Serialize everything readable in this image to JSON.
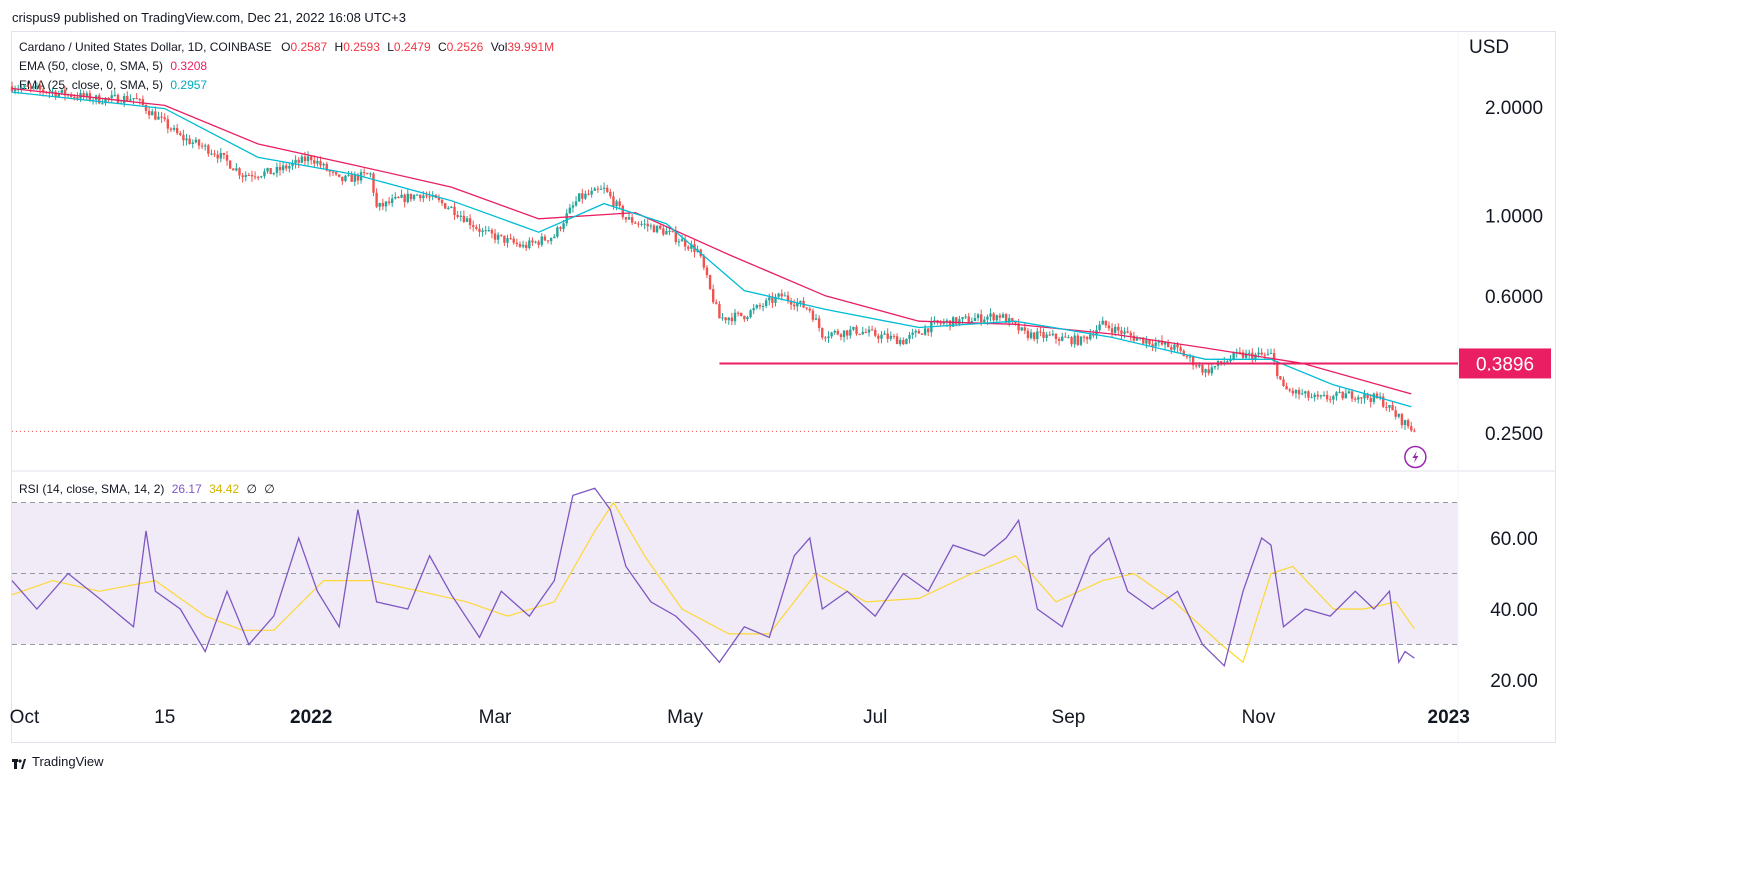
{
  "publish_line": "crispus9 published on TradingView.com, Dec 21, 2022 16:08 UTC+3",
  "legend": {
    "symbol": "Cardano / United States Dollar, 1D, COINBASE",
    "o_label": "O",
    "o": "0.2587",
    "h_label": "H",
    "h": "0.2593",
    "l_label": "L",
    "l": "0.2479",
    "c_label": "C",
    "c": "0.2526",
    "vol_label": "Vol",
    "vol": "39.991M",
    "ema50_label": "EMA (50, close, 0, SMA, 5)",
    "ema50_value": "0.3208",
    "ema25_label": "EMA (25, close, 0, SMA, 5)",
    "ema25_value": "0.2957",
    "rsi_label": "RSI (14, close, SMA, 14, 2)",
    "rsi_value": "26.17",
    "rsi_ma_value": "34.42",
    "na_glyphs": [
      "∅",
      "∅"
    ]
  },
  "currency": "USD",
  "footer_brand": "TradingView",
  "colors": {
    "up": "#26a69a",
    "down": "#ef5350",
    "ema50": "#e91e63",
    "ema25": "#00bcd4",
    "support_line": "#e91e63",
    "rsi": "#7e57c2",
    "rsi_ma": "#fdd835",
    "rsi_band": "#ede7f6"
  },
  "chart_data": [
    {
      "type": "candlestick",
      "title": "Cardano / United States Dollar, 1D, COINBASE",
      "y_scale": "log",
      "y_ticks": [
        2.0,
        1.0,
        0.6,
        0.25
      ],
      "y_tick_labels": [
        "2.0000",
        "1.0000",
        "0.6000",
        "0.2500"
      ],
      "x_ticks": [
        "Oct",
        "15",
        "2022",
        "Mar",
        "May",
        "Jul",
        "Sep",
        "Nov",
        "2023"
      ],
      "x_tick_dates": [
        "2021-10-01",
        "2021-11-15",
        "2022-01-01",
        "2022-03-01",
        "2022-05-01",
        "2022-07-01",
        "2022-09-01",
        "2022-11-01",
        "2023-01-01"
      ],
      "x_range": [
        "2021-09-27",
        "2023-01-04"
      ],
      "support_level": 0.3896,
      "support_label": "0.3896",
      "support_start": "2022-05-12",
      "last_price": 0.2526,
      "ema50_last": 0.3208,
      "ema25_last": 0.2957,
      "price_path": [
        [
          "2021-09-27",
          2.28
        ],
        [
          "2021-10-10",
          2.2
        ],
        [
          "2021-10-25",
          2.1
        ],
        [
          "2021-11-05",
          2.12
        ],
        [
          "2021-11-10",
          1.95
        ],
        [
          "2021-11-20",
          1.65
        ],
        [
          "2021-12-01",
          1.5
        ],
        [
          "2021-12-10",
          1.3
        ],
        [
          "2021-12-20",
          1.32
        ],
        [
          "2022-01-01",
          1.45
        ],
        [
          "2022-01-10",
          1.25
        ],
        [
          "2022-01-20",
          1.3
        ],
        [
          "2022-01-22",
          1.05
        ],
        [
          "2022-01-28",
          1.1
        ],
        [
          "2022-02-05",
          1.15
        ],
        [
          "2022-02-15",
          1.05
        ],
        [
          "2022-02-25",
          0.9
        ],
        [
          "2022-03-10",
          0.82
        ],
        [
          "2022-03-20",
          0.88
        ],
        [
          "2022-03-28",
          1.12
        ],
        [
          "2022-04-05",
          1.18
        ],
        [
          "2022-04-12",
          0.98
        ],
        [
          "2022-04-25",
          0.9
        ],
        [
          "2022-05-05",
          0.8
        ],
        [
          "2022-05-09",
          0.62
        ],
        [
          "2022-05-12",
          0.52
        ],
        [
          "2022-05-20",
          0.53
        ],
        [
          "2022-06-01",
          0.6
        ],
        [
          "2022-06-10",
          0.55
        ],
        [
          "2022-06-14",
          0.47
        ],
        [
          "2022-06-25",
          0.48
        ],
        [
          "2022-07-10",
          0.45
        ],
        [
          "2022-07-20",
          0.5
        ],
        [
          "2022-08-10",
          0.53
        ],
        [
          "2022-08-18",
          0.47
        ],
        [
          "2022-09-05",
          0.45
        ],
        [
          "2022-09-12",
          0.5
        ],
        [
          "2022-09-22",
          0.46
        ],
        [
          "2022-10-05",
          0.43
        ],
        [
          "2022-10-15",
          0.37
        ],
        [
          "2022-10-25",
          0.41
        ],
        [
          "2022-11-05",
          0.41
        ],
        [
          "2022-11-09",
          0.33
        ],
        [
          "2022-11-20",
          0.31
        ],
        [
          "2022-12-01",
          0.32
        ],
        [
          "2022-12-10",
          0.31
        ],
        [
          "2022-12-15",
          0.28
        ],
        [
          "2022-12-21",
          0.2526
        ]
      ],
      "ema50_path": [
        [
          "2021-09-27",
          2.25
        ],
        [
          "2021-11-15",
          2.02
        ],
        [
          "2021-12-15",
          1.58
        ],
        [
          "2022-01-15",
          1.38
        ],
        [
          "2022-02-15",
          1.2
        ],
        [
          "2022-03-15",
          0.98
        ],
        [
          "2022-04-15",
          1.02
        ],
        [
          "2022-05-15",
          0.78
        ],
        [
          "2022-06-15",
          0.6
        ],
        [
          "2022-07-15",
          0.51
        ],
        [
          "2022-08-15",
          0.5
        ],
        [
          "2022-09-15",
          0.47
        ],
        [
          "2022-10-15",
          0.43
        ],
        [
          "2022-11-15",
          0.39
        ],
        [
          "2022-12-20",
          0.3208
        ]
      ],
      "ema25_path": [
        [
          "2021-09-27",
          2.2
        ],
        [
          "2021-11-15",
          1.98
        ],
        [
          "2021-12-15",
          1.45
        ],
        [
          "2022-01-15",
          1.3
        ],
        [
          "2022-02-15",
          1.1
        ],
        [
          "2022-03-15",
          0.9
        ],
        [
          "2022-04-05",
          1.08
        ],
        [
          "2022-04-25",
          0.95
        ],
        [
          "2022-05-20",
          0.62
        ],
        [
          "2022-06-15",
          0.55
        ],
        [
          "2022-07-15",
          0.49
        ],
        [
          "2022-08-15",
          0.51
        ],
        [
          "2022-09-15",
          0.46
        ],
        [
          "2022-10-15",
          0.4
        ],
        [
          "2022-11-05",
          0.4
        ],
        [
          "2022-11-25",
          0.34
        ],
        [
          "2022-12-20",
          0.2957
        ]
      ]
    },
    {
      "type": "line",
      "title": "RSI (14, close, SMA, 14, 2)",
      "y_ticks": [
        60,
        40,
        20
      ],
      "y_tick_labels": [
        "60.00",
        "40.00",
        "20.00"
      ],
      "ylim": [
        15,
        80
      ],
      "upper_band": 70,
      "middle_band": 50,
      "lower_band": 30,
      "rsi_last": 26.17,
      "rsi_ma_last": 34.42,
      "rsi_path": [
        [
          "2021-09-27",
          48
        ],
        [
          "2021-10-05",
          40
        ],
        [
          "2021-10-15",
          50
        ],
        [
          "2021-10-25",
          43
        ],
        [
          "2021-11-05",
          35
        ],
        [
          "2021-11-09",
          62
        ],
        [
          "2021-11-12",
          45
        ],
        [
          "2021-11-20",
          40
        ],
        [
          "2021-11-28",
          28
        ],
        [
          "2021-12-05",
          45
        ],
        [
          "2021-12-12",
          30
        ],
        [
          "2021-12-20",
          38
        ],
        [
          "2021-12-28",
          60
        ],
        [
          "2022-01-03",
          45
        ],
        [
          "2022-01-10",
          35
        ],
        [
          "2022-01-16",
          68
        ],
        [
          "2022-01-22",
          42
        ],
        [
          "2022-02-01",
          40
        ],
        [
          "2022-02-08",
          55
        ],
        [
          "2022-02-15",
          44
        ],
        [
          "2022-02-24",
          32
        ],
        [
          "2022-03-03",
          45
        ],
        [
          "2022-03-12",
          38
        ],
        [
          "2022-03-20",
          48
        ],
        [
          "2022-03-26",
          72
        ],
        [
          "2022-04-02",
          74
        ],
        [
          "2022-04-07",
          68
        ],
        [
          "2022-04-12",
          52
        ],
        [
          "2022-04-20",
          42
        ],
        [
          "2022-04-28",
          38
        ],
        [
          "2022-05-05",
          32
        ],
        [
          "2022-05-12",
          25
        ],
        [
          "2022-05-20",
          35
        ],
        [
          "2022-05-28",
          32
        ],
        [
          "2022-06-05",
          55
        ],
        [
          "2022-06-10",
          60
        ],
        [
          "2022-06-14",
          40
        ],
        [
          "2022-06-22",
          45
        ],
        [
          "2022-07-01",
          38
        ],
        [
          "2022-07-10",
          50
        ],
        [
          "2022-07-18",
          45
        ],
        [
          "2022-07-26",
          58
        ],
        [
          "2022-08-05",
          55
        ],
        [
          "2022-08-12",
          60
        ],
        [
          "2022-08-16",
          65
        ],
        [
          "2022-08-22",
          40
        ],
        [
          "2022-08-30",
          35
        ],
        [
          "2022-09-08",
          55
        ],
        [
          "2022-09-14",
          60
        ],
        [
          "2022-09-20",
          45
        ],
        [
          "2022-09-28",
          40
        ],
        [
          "2022-10-06",
          45
        ],
        [
          "2022-10-14",
          30
        ],
        [
          "2022-10-21",
          24
        ],
        [
          "2022-10-27",
          45
        ],
        [
          "2022-11-02",
          60
        ],
        [
          "2022-11-05",
          58
        ],
        [
          "2022-11-09",
          35
        ],
        [
          "2022-11-16",
          40
        ],
        [
          "2022-11-24",
          38
        ],
        [
          "2022-12-02",
          45
        ],
        [
          "2022-12-08",
          40
        ],
        [
          "2022-12-13",
          45
        ],
        [
          "2022-12-16",
          25
        ],
        [
          "2022-12-18",
          28
        ],
        [
          "2022-12-21",
          26.17
        ]
      ],
      "rsi_ma_path": [
        [
          "2021-09-27",
          44
        ],
        [
          "2021-10-10",
          48
        ],
        [
          "2021-10-25",
          45
        ],
        [
          "2021-11-12",
          48
        ],
        [
          "2021-11-28",
          38
        ],
        [
          "2021-12-10",
          34
        ],
        [
          "2021-12-20",
          34
        ],
        [
          "2022-01-05",
          48
        ],
        [
          "2022-01-20",
          48
        ],
        [
          "2022-02-05",
          45
        ],
        [
          "2022-02-20",
          42
        ],
        [
          "2022-03-05",
          38
        ],
        [
          "2022-03-20",
          42
        ],
        [
          "2022-04-02",
          62
        ],
        [
          "2022-04-08",
          70
        ],
        [
          "2022-04-18",
          55
        ],
        [
          "2022-04-30",
          40
        ],
        [
          "2022-05-15",
          33
        ],
        [
          "2022-05-28",
          33
        ],
        [
          "2022-06-12",
          50
        ],
        [
          "2022-06-28",
          42
        ],
        [
          "2022-07-15",
          43
        ],
        [
          "2022-08-01",
          50
        ],
        [
          "2022-08-15",
          55
        ],
        [
          "2022-08-28",
          42
        ],
        [
          "2022-09-12",
          48
        ],
        [
          "2022-09-22",
          50
        ],
        [
          "2022-10-05",
          42
        ],
        [
          "2022-10-20",
          30
        ],
        [
          "2022-10-27",
          25
        ],
        [
          "2022-11-05",
          50
        ],
        [
          "2022-11-12",
          52
        ],
        [
          "2022-11-25",
          40
        ],
        [
          "2022-12-05",
          40
        ],
        [
          "2022-12-15",
          42
        ],
        [
          "2022-12-21",
          34.42
        ]
      ]
    }
  ]
}
